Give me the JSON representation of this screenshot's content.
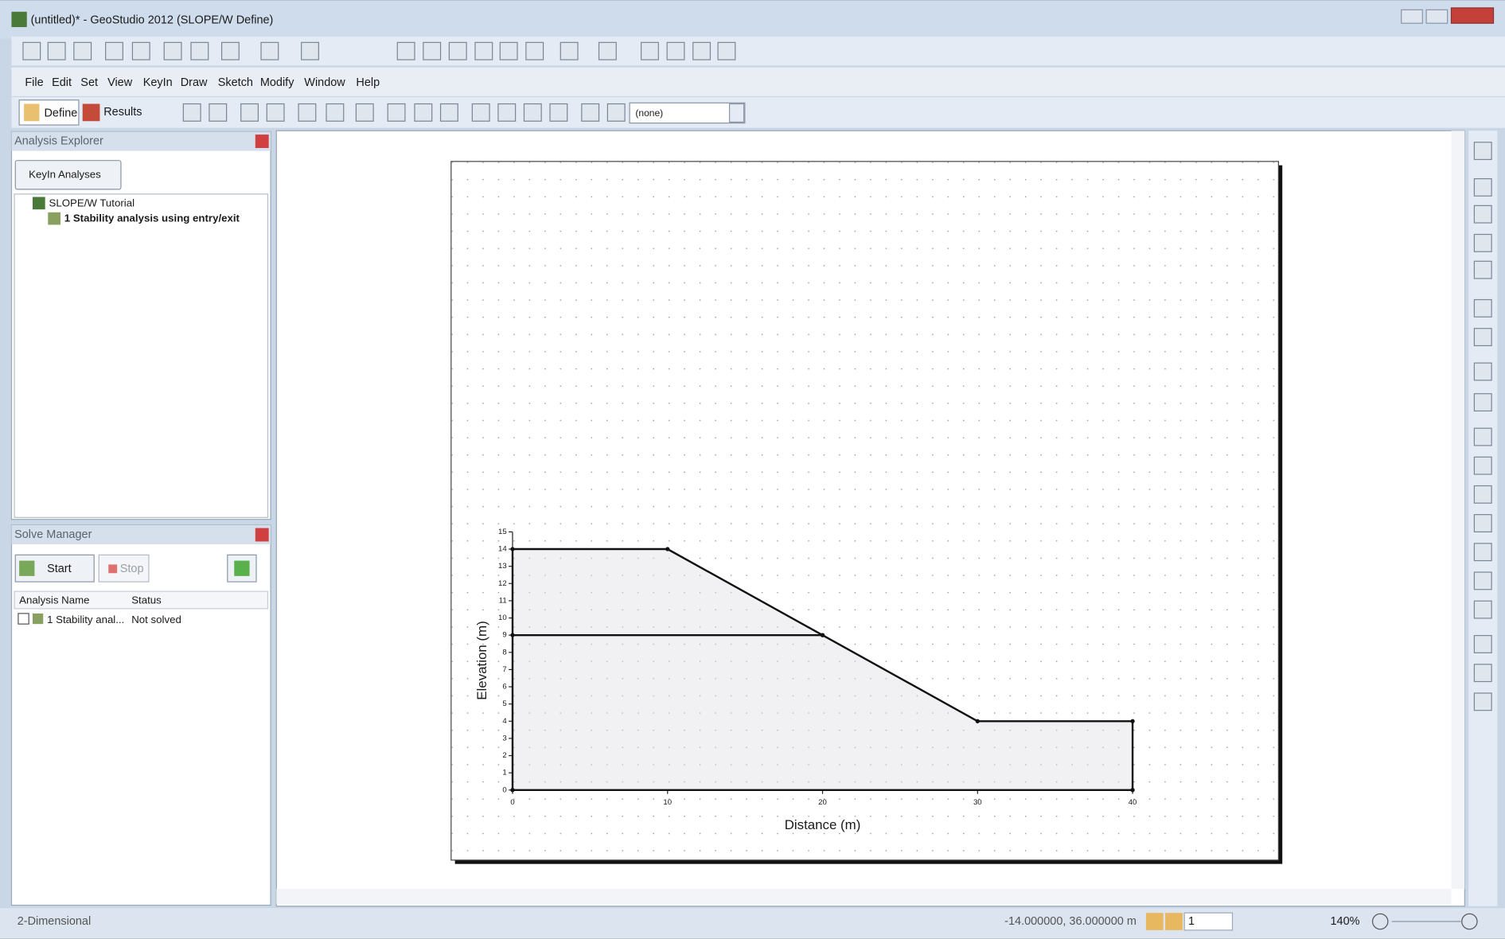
{
  "window": {
    "title": "(untitled)* - GeoStudio 2012 (SLOPE/W Define)"
  },
  "menu": [
    "File",
    "Edit",
    "Set",
    "View",
    "KeyIn",
    "Draw",
    "Sketch",
    "Modify",
    "Window",
    "Help"
  ],
  "toolbar": {
    "define": "Define",
    "results": "Results",
    "combo": "(none)"
  },
  "analysis_explorer": {
    "title": "Analysis Explorer",
    "button": "KeyIn Analyses",
    "project": "SLOPE/W Tutorial",
    "analysis": "1 Stability analysis using entry/exit"
  },
  "solve_manager": {
    "title": "Solve Manager",
    "start": "Start",
    "stop": "Stop",
    "columns": [
      "Analysis Name",
      "Status"
    ],
    "row": [
      "1 Stability anal...",
      "Not solved"
    ]
  },
  "status_bar": {
    "mode": "2-Dimensional",
    "coordinates": "-14.000000, 36.000000 m",
    "spin": "1",
    "zoom": "140%"
  },
  "drawing": {
    "x_label": "Distance (m)",
    "y_label": "Elevation (m)",
    "xlim": [
      0,
      40
    ],
    "ylim": [
      0,
      15
    ],
    "xticks": [
      0,
      10,
      20,
      30,
      40
    ],
    "yticks": [
      0,
      1,
      2,
      3,
      4,
      5,
      6,
      7,
      8,
      9,
      10,
      11,
      12,
      13,
      14,
      15
    ],
    "region": {
      "x": [
        0,
        10,
        20,
        30,
        40,
        40,
        0
      ],
      "y": [
        14,
        14,
        9,
        4,
        4,
        0,
        0
      ]
    },
    "layer_line": {
      "x": [
        0,
        20
      ],
      "y": [
        9,
        9
      ]
    }
  }
}
